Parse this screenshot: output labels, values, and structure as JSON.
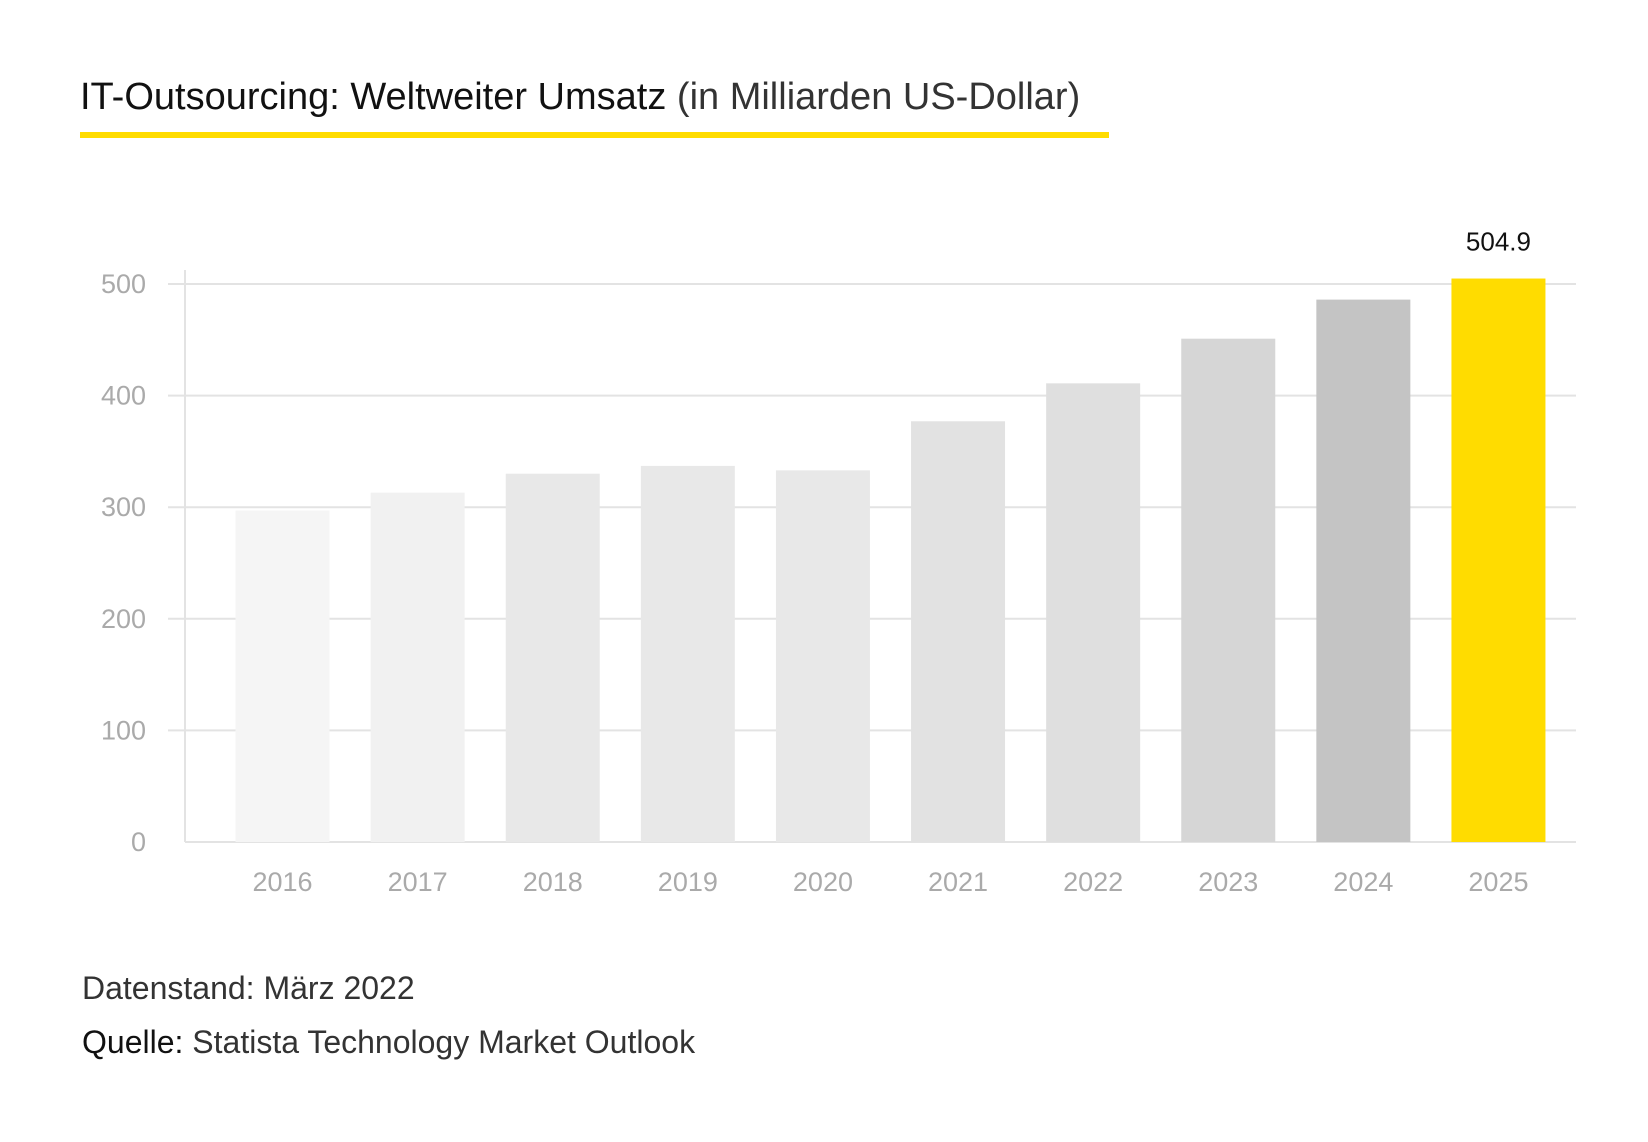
{
  "title": {
    "main": "IT-Outsourcing: Weltweiter Umsatz",
    "unit": "(in Milliarden US-Dollar)"
  },
  "footer": {
    "date_label": "Datenstand: März 2022",
    "source_label": "Quelle:",
    "source_value": "Statista Technology Market Outlook"
  },
  "colors": {
    "accent": "#ffdc00",
    "highlight_bar": "#ffdc00",
    "bars": [
      "#f5f5f5",
      "#f1f1f1",
      "#e8e8e8",
      "#e8e8e8",
      "#e8e8e8",
      "#e2e2e2",
      "#dfdfdf",
      "#d6d6d6",
      "#c4c4c4"
    ]
  },
  "chart_data": {
    "type": "bar",
    "title": "IT-Outsourcing: Weltweiter Umsatz (in Milliarden US-Dollar)",
    "categories": [
      "2016",
      "2017",
      "2018",
      "2019",
      "2020",
      "2021",
      "2022",
      "2023",
      "2024",
      "2025"
    ],
    "values": [
      297,
      313,
      330,
      337,
      333,
      377,
      411,
      451,
      486,
      504.9
    ],
    "data_labels": {
      "2025": "504.9"
    },
    "yticks": [
      "0",
      "100",
      "200",
      "300",
      "400",
      "500"
    ],
    "ylim": [
      0,
      520
    ],
    "grid": true,
    "xlabel": "",
    "ylabel": ""
  }
}
